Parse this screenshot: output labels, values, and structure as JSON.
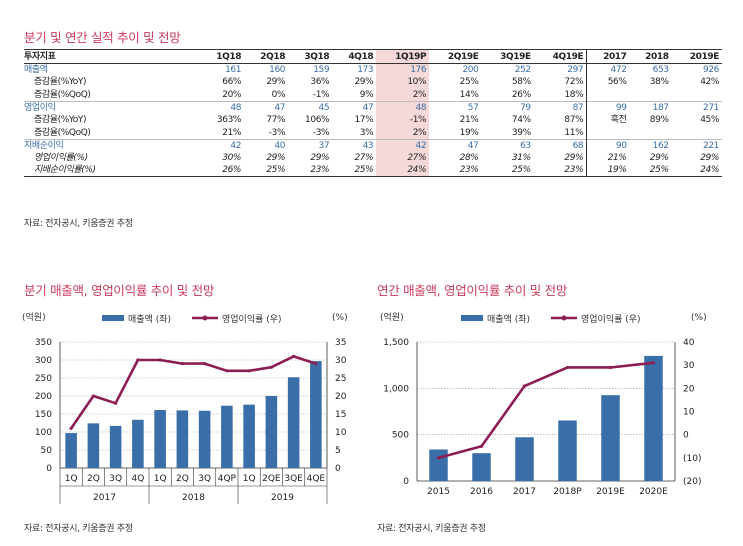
{
  "table_title": "분기 및 연간 실적 추이 및 전망",
  "table": {
    "header": [
      "투자지표",
      "1Q18",
      "2Q18",
      "3Q18",
      "4Q18",
      "1Q19P",
      "2Q19E",
      "3Q19E",
      "4Q19E",
      "2017",
      "2018",
      "2019E"
    ],
    "rows": [
      {
        "label": "매출액",
        "kind": "main",
        "cells": [
          "161",
          "160",
          "159",
          "173",
          "176",
          "200",
          "252",
          "297",
          "472",
          "653",
          "926"
        ]
      },
      {
        "label": "증감율(%YoY)",
        "kind": "sub",
        "cells": [
          "66%",
          "29%",
          "36%",
          "29%",
          "10%",
          "25%",
          "58%",
          "72%",
          "56%",
          "38%",
          "42%"
        ]
      },
      {
        "label": "증감율(%QoQ)",
        "kind": "sub",
        "cells": [
          "20%",
          "0%",
          "-1%",
          "9%",
          "2%",
          "14%",
          "26%",
          "18%",
          "",
          "",
          ""
        ]
      },
      {
        "label": "영업이익",
        "kind": "main",
        "cells": [
          "48",
          "47",
          "45",
          "47",
          "48",
          "57",
          "79",
          "87",
          "99",
          "187",
          "271"
        ]
      },
      {
        "label": "증감율(%YoY)",
        "kind": "sub",
        "cells": [
          "363%",
          "77%",
          "106%",
          "17%",
          "-1%",
          "21%",
          "74%",
          "87%",
          "흑전",
          "89%",
          "45%"
        ]
      },
      {
        "label": "증감율(%QoQ)",
        "kind": "sub",
        "cells": [
          "21%",
          "-3%",
          "-3%",
          "3%",
          "2%",
          "19%",
          "39%",
          "11%",
          "",
          "",
          ""
        ]
      },
      {
        "label": "지배순이익",
        "kind": "main",
        "cells": [
          "42",
          "40",
          "37",
          "43",
          "42",
          "47",
          "63",
          "68",
          "90",
          "162",
          "221"
        ]
      },
      {
        "label": "영업이익률(%)",
        "kind": "it",
        "cells": [
          "30%",
          "29%",
          "29%",
          "27%",
          "27%",
          "28%",
          "31%",
          "29%",
          "21%",
          "29%",
          "29%"
        ]
      },
      {
        "label": "지배순이익률(%)",
        "kind": "it",
        "cells": [
          "26%",
          "25%",
          "23%",
          "25%",
          "24%",
          "23%",
          "25%",
          "23%",
          "19%",
          "25%",
          "24%"
        ]
      }
    ]
  },
  "source_text": "자료: 전자공시, 키움증권 추정",
  "colors": {
    "title": "#c8395a",
    "bar": "#3a6ea8",
    "line": "#8c1d55",
    "highlight": "#f5d9d8"
  },
  "chart_data": [
    {
      "type": "bar",
      "title": "분기 매출액, 영업이익률 추이 및 전망",
      "left_unit": "(억원)",
      "right_unit": "(%)",
      "categories": [
        "1Q",
        "2Q",
        "3Q",
        "4Q",
        "1Q",
        "2Q",
        "3Q",
        "4QP",
        "1Q",
        "2QE",
        "3QE",
        "4QE"
      ],
      "groups": [
        {
          "label": "2017",
          "count": 4
        },
        {
          "label": "2018",
          "count": 4
        },
        {
          "label": "2019",
          "count": 4
        }
      ],
      "series": [
        {
          "name": "매출액 (좌)",
          "type": "bar",
          "axis": "left",
          "values": [
            97,
            124,
            117,
            134,
            161,
            160,
            159,
            173,
            176,
            200,
            252,
            297
          ]
        },
        {
          "name": "영업이익률 (우)",
          "type": "line",
          "axis": "right",
          "values": [
            11,
            20,
            18,
            30,
            30,
            29,
            29,
            27,
            27,
            28,
            31,
            29
          ]
        }
      ],
      "ylim_left": [
        0,
        350
      ],
      "yticks_left": [
        0,
        50,
        100,
        150,
        200,
        250,
        300,
        350
      ],
      "ytick_labels_left": [
        "0",
        "50",
        "100",
        "150",
        "200",
        "250",
        "300",
        "350"
      ],
      "ylim_right": [
        0,
        35
      ],
      "yticks_right": [
        0,
        5,
        10,
        15,
        20,
        25,
        30,
        35
      ],
      "ytick_labels_right": [
        "0",
        "5",
        "10",
        "15",
        "20",
        "25",
        "30",
        "35"
      ],
      "grid": true,
      "legend": "top"
    },
    {
      "type": "bar",
      "title": "연간 매출액, 영업이익률 추이 및 전망",
      "left_unit": "(억원)",
      "right_unit": "(%)",
      "categories": [
        "2015",
        "2016",
        "2017",
        "2018P",
        "2019E",
        "2020E"
      ],
      "series": [
        {
          "name": "매출액 (좌)",
          "type": "bar",
          "axis": "left",
          "values": [
            340,
            300,
            472,
            653,
            926,
            1350
          ]
        },
        {
          "name": "영업이익률 (우)",
          "type": "line",
          "axis": "right",
          "values": [
            -10,
            -5,
            21,
            29,
            29,
            31
          ]
        }
      ],
      "ylim_left": [
        0,
        1500
      ],
      "yticks_left": [
        0,
        500,
        1000,
        1500
      ],
      "ytick_labels_left": [
        "0",
        "500",
        "1,000",
        "1,500"
      ],
      "ylim_right": [
        -20,
        40
      ],
      "yticks_right": [
        -20,
        -10,
        0,
        10,
        20,
        30,
        40
      ],
      "ytick_labels_right": [
        "(20)",
        "(10)",
        "0",
        "10",
        "20",
        "30",
        "40"
      ],
      "grid": true,
      "legend": "top"
    }
  ]
}
